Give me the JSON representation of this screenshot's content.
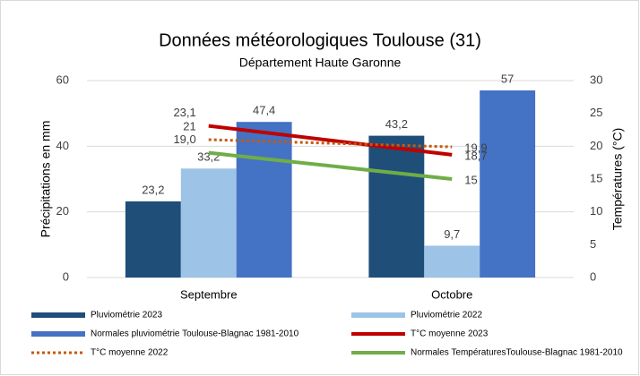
{
  "chart_data": {
    "type": "bar-line",
    "title": "Données météorologiques Toulouse (31)",
    "subtitle": "Département Haute Garonne",
    "ylabel": "Précipitations en mm",
    "y2label": "Températures (°C)",
    "categories": [
      "Septembre",
      "Octobre"
    ],
    "ylim": [
      0,
      60
    ],
    "yticks": [
      0,
      20,
      40,
      60
    ],
    "y2lim": [
      0,
      30
    ],
    "y2ticks": [
      0,
      5,
      10,
      15,
      20,
      25,
      30
    ],
    "grid": true,
    "legend": "bottom",
    "series": [
      {
        "name": "Pluviométrie 2023",
        "kind": "bar",
        "color": "#1f4e79",
        "values": [
          23.2,
          43.2
        ],
        "value_labels": [
          "23,2",
          "43,2"
        ]
      },
      {
        "name": "Pluviométrie 2022",
        "kind": "bar",
        "color": "#9dc3e6",
        "values": [
          33.2,
          9.7
        ],
        "value_labels": [
          "33,2",
          "9,7"
        ]
      },
      {
        "name": "Normales pluviométrie Toulouse-Blagnac 1981-2010",
        "kind": "bar",
        "color": "#4472c4",
        "values": [
          47.4,
          57
        ],
        "value_labels": [
          "47,4",
          "57"
        ]
      },
      {
        "name": "T°C moyenne 2023",
        "kind": "line",
        "axis": "y2",
        "color": "#c00000",
        "values": [
          23.1,
          18.7
        ],
        "value_labels": [
          "23,1",
          "18,7"
        ]
      },
      {
        "name": "T°C moyenne 2022",
        "kind": "line",
        "axis": "y2",
        "dotted": true,
        "color": "#c55a11",
        "values": [
          21,
          19.9
        ],
        "value_labels": [
          "21",
          "19,9"
        ]
      },
      {
        "name": "Normales TempératuresToulouse-Blagnac 1981-2010",
        "kind": "line",
        "axis": "y2",
        "color": "#70ad47",
        "values": [
          19.0,
          15
        ],
        "value_labels": [
          "19,0",
          "15"
        ]
      }
    ]
  }
}
